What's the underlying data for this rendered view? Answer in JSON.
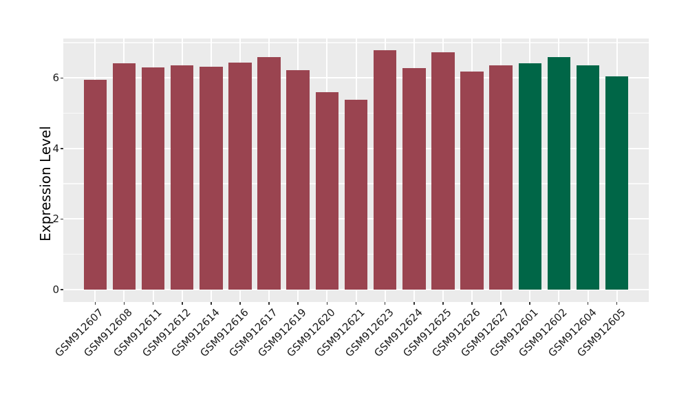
{
  "chart_data": {
    "type": "bar",
    "title": "",
    "xlabel": "",
    "ylabel": "Expression Level",
    "ylim": [
      0,
      7.12
    ],
    "yticks": [
      0,
      2,
      4,
      6
    ],
    "yticks_minor": [
      1,
      3,
      5,
      7
    ],
    "grid": "on",
    "legend_position": "none",
    "categories": [
      "GSM912607",
      "GSM912608",
      "GSM912611",
      "GSM912612",
      "GSM912614",
      "GSM912616",
      "GSM912617",
      "GSM912619",
      "GSM912620",
      "GSM912621",
      "GSM912623",
      "GSM912624",
      "GSM912625",
      "GSM912626",
      "GSM912627",
      "GSM912601",
      "GSM912602",
      "GSM912604",
      "GSM912605"
    ],
    "values": [
      5.95,
      6.41,
      6.29,
      6.36,
      6.31,
      6.44,
      6.59,
      6.22,
      5.6,
      5.38,
      6.78,
      6.27,
      6.73,
      6.18,
      6.35,
      6.41,
      6.59,
      6.36,
      6.05
    ],
    "bar_colors": [
      "#9A4450",
      "#9A4450",
      "#9A4450",
      "#9A4450",
      "#9A4450",
      "#9A4450",
      "#9A4450",
      "#9A4450",
      "#9A4450",
      "#9A4450",
      "#9A4450",
      "#9A4450",
      "#9A4450",
      "#9A4450",
      "#9A4450",
      "#006647",
      "#006647",
      "#006647",
      "#006647"
    ]
  },
  "style": {
    "figure_bg": "#FFFFFF",
    "panel_bg": "#EBEBEB",
    "grid_major_color": "#FFFFFF",
    "grid_minor_color": "#F7F7F7",
    "tick_color": "#333333",
    "text_color": "#1A1A1A",
    "group_color_red": "#9A4450",
    "group_color_green": "#006647"
  }
}
